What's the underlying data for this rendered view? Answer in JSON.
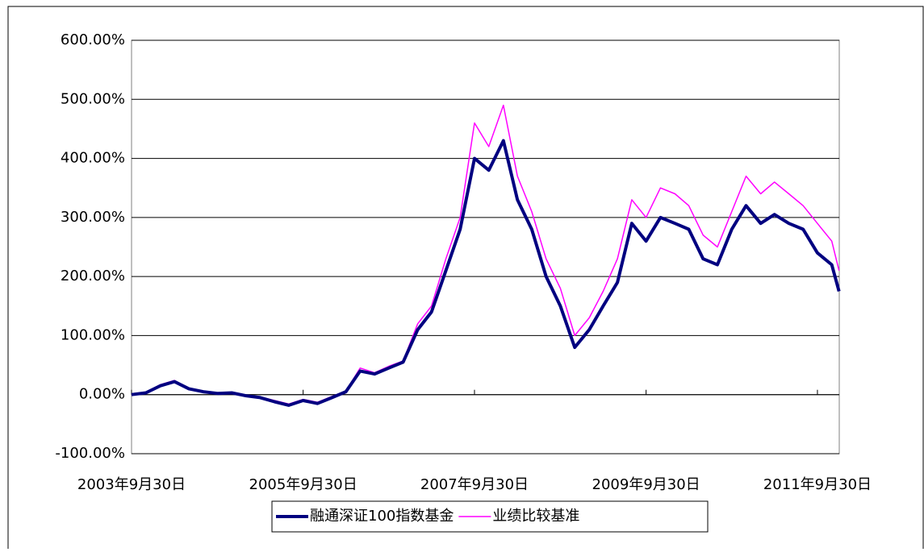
{
  "chart_data": {
    "type": "line",
    "x": [
      "2003-09-30",
      "2003-11-30",
      "2004-01-31",
      "2004-03-31",
      "2004-05-31",
      "2004-07-31",
      "2004-09-30",
      "2004-11-30",
      "2005-01-31",
      "2005-03-31",
      "2005-05-31",
      "2005-07-31",
      "2005-09-30",
      "2005-11-30",
      "2006-01-31",
      "2006-03-31",
      "2006-05-31",
      "2006-07-31",
      "2006-09-30",
      "2006-11-30",
      "2007-01-31",
      "2007-03-31",
      "2007-05-31",
      "2007-07-31",
      "2007-09-30",
      "2007-11-30",
      "2008-01-31",
      "2008-03-31",
      "2008-05-31",
      "2008-07-31",
      "2008-09-30",
      "2008-11-30",
      "2009-01-31",
      "2009-03-31",
      "2009-05-31",
      "2009-07-31",
      "2009-09-30",
      "2009-11-30",
      "2010-01-31",
      "2010-03-31",
      "2010-05-31",
      "2010-07-31",
      "2010-09-30",
      "2010-11-30",
      "2011-01-31",
      "2011-03-31",
      "2011-05-31",
      "2011-07-31",
      "2011-09-30",
      "2011-11-30",
      "2011-12-31"
    ],
    "series": [
      {
        "name": "融通深证100指数基金",
        "color": "#000080",
        "values": [
          0,
          3,
          15,
          22,
          10,
          5,
          2,
          3,
          -2,
          -5,
          -12,
          -18,
          -10,
          -15,
          -5,
          5,
          40,
          35,
          45,
          55,
          110,
          140,
          210,
          280,
          400,
          380,
          430,
          330,
          280,
          200,
          150,
          80,
          110,
          150,
          190,
          290,
          260,
          300,
          290,
          280,
          230,
          220,
          280,
          320,
          290,
          305,
          290,
          280,
          240,
          220,
          175
        ]
      },
      {
        "name": "业绩比较基准",
        "color": "#ff00ff",
        "values": [
          0,
          3,
          17,
          24,
          10,
          5,
          2,
          4,
          -2,
          -4,
          -10,
          -16,
          -8,
          -13,
          -3,
          6,
          45,
          37,
          48,
          57,
          120,
          150,
          230,
          300,
          460,
          420,
          490,
          370,
          310,
          230,
          180,
          100,
          130,
          175,
          230,
          330,
          300,
          350,
          340,
          320,
          270,
          250,
          310,
          370,
          340,
          360,
          340,
          320,
          290,
          260,
          210
        ]
      }
    ],
    "xlim": [
      "2003-09-30",
      "2012-01-01"
    ],
    "xticks": [
      {
        "value": "2003-09-30",
        "label": "2003年9月30日"
      },
      {
        "value": "2005-09-30",
        "label": "2005年9月30日"
      },
      {
        "value": "2007-09-30",
        "label": "2007年9月30日"
      },
      {
        "value": "2009-09-30",
        "label": "2009年9月30日"
      },
      {
        "value": "2011-09-30",
        "label": "2011年9月30日"
      }
    ],
    "ylim": [
      -100,
      600
    ],
    "yticks": [
      {
        "value": -100,
        "label": "-100.00%"
      },
      {
        "value": 0,
        "label": "0.00%"
      },
      {
        "value": 100,
        "label": "100.00%"
      },
      {
        "value": 200,
        "label": "200.00%"
      },
      {
        "value": 300,
        "label": "300.00%"
      },
      {
        "value": 400,
        "label": "400.00%"
      },
      {
        "value": 500,
        "label": "500.00%"
      },
      {
        "value": 600,
        "label": "600.00%"
      }
    ],
    "grid": true,
    "legend": "bottom"
  }
}
